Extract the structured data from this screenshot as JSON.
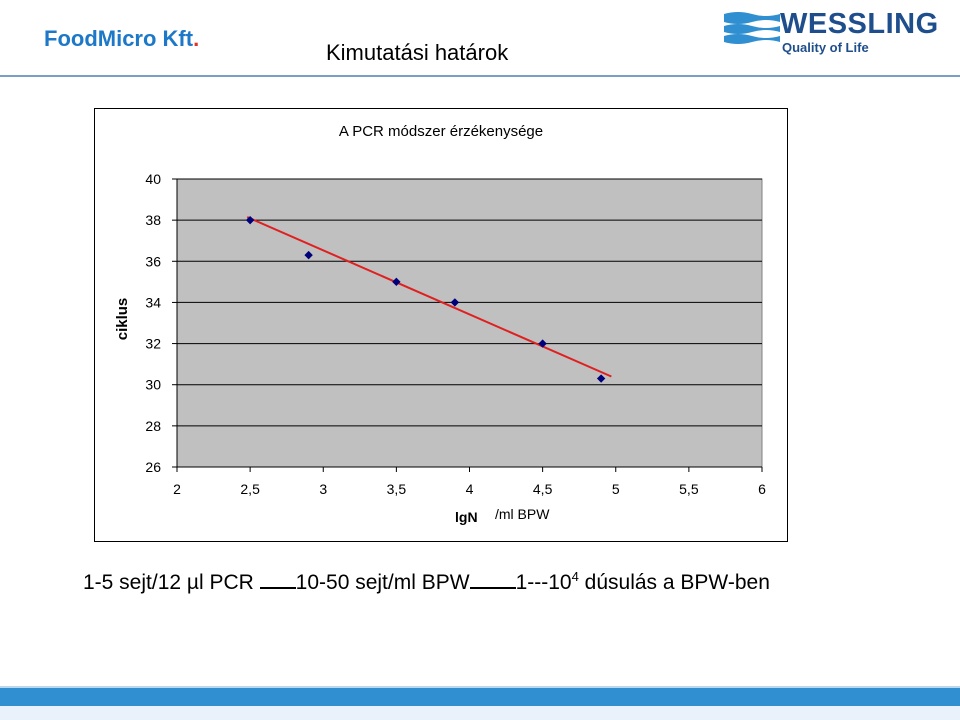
{
  "header": {
    "company": "FoodMicro Kft.",
    "company_dot": ".",
    "slide_title": "Kimutatási határok",
    "logo_name": "WESSLING",
    "logo_tagline": "Quality of Life"
  },
  "chart_data": {
    "type": "scatter",
    "title": "A PCR módszer érzékenysége",
    "ylabel": "ciklus",
    "xlabel_bold": "lgN",
    "xlabel_unit": "/ml BPW",
    "xlim": [
      2,
      6
    ],
    "ylim": [
      26,
      40
    ],
    "xticks": [
      "2",
      "2,5",
      "3",
      "3,5",
      "4",
      "4,5",
      "5",
      "5,5",
      "6"
    ],
    "xtick_values": [
      2,
      2.5,
      3,
      3.5,
      4,
      4.5,
      5,
      5.5,
      6
    ],
    "yticks": [
      "26",
      "28",
      "30",
      "32",
      "34",
      "36",
      "38",
      "40"
    ],
    "ytick_values": [
      26,
      28,
      30,
      32,
      34,
      36,
      38,
      40
    ],
    "grid": true,
    "series": [
      {
        "x": [
          2.5,
          2.9,
          3.5,
          3.9,
          4.5,
          4.9
        ],
        "y": [
          38.0,
          36.3,
          35.0,
          34.0,
          32.0,
          30.3
        ]
      }
    ],
    "trendline": {
      "x": [
        2.48,
        4.97
      ],
      "y": [
        38.15,
        30.4
      ]
    },
    "colors": {
      "plot_bg": "#c0c0c0",
      "marker": "#00007a",
      "trendline": "#e02020"
    }
  },
  "footer": {
    "part1": "1-5 sejt/12 µl PCR ",
    "part2": "10-50 sejt/ml BPW",
    "part3": "1---10",
    "sup": "4",
    "part4": " dúsulás a BPW-ben"
  },
  "colors": {
    "brand_blue": "#1d78c8",
    "logo_blue": "#1f4e8c",
    "footer_band": "#2f8fd1"
  }
}
